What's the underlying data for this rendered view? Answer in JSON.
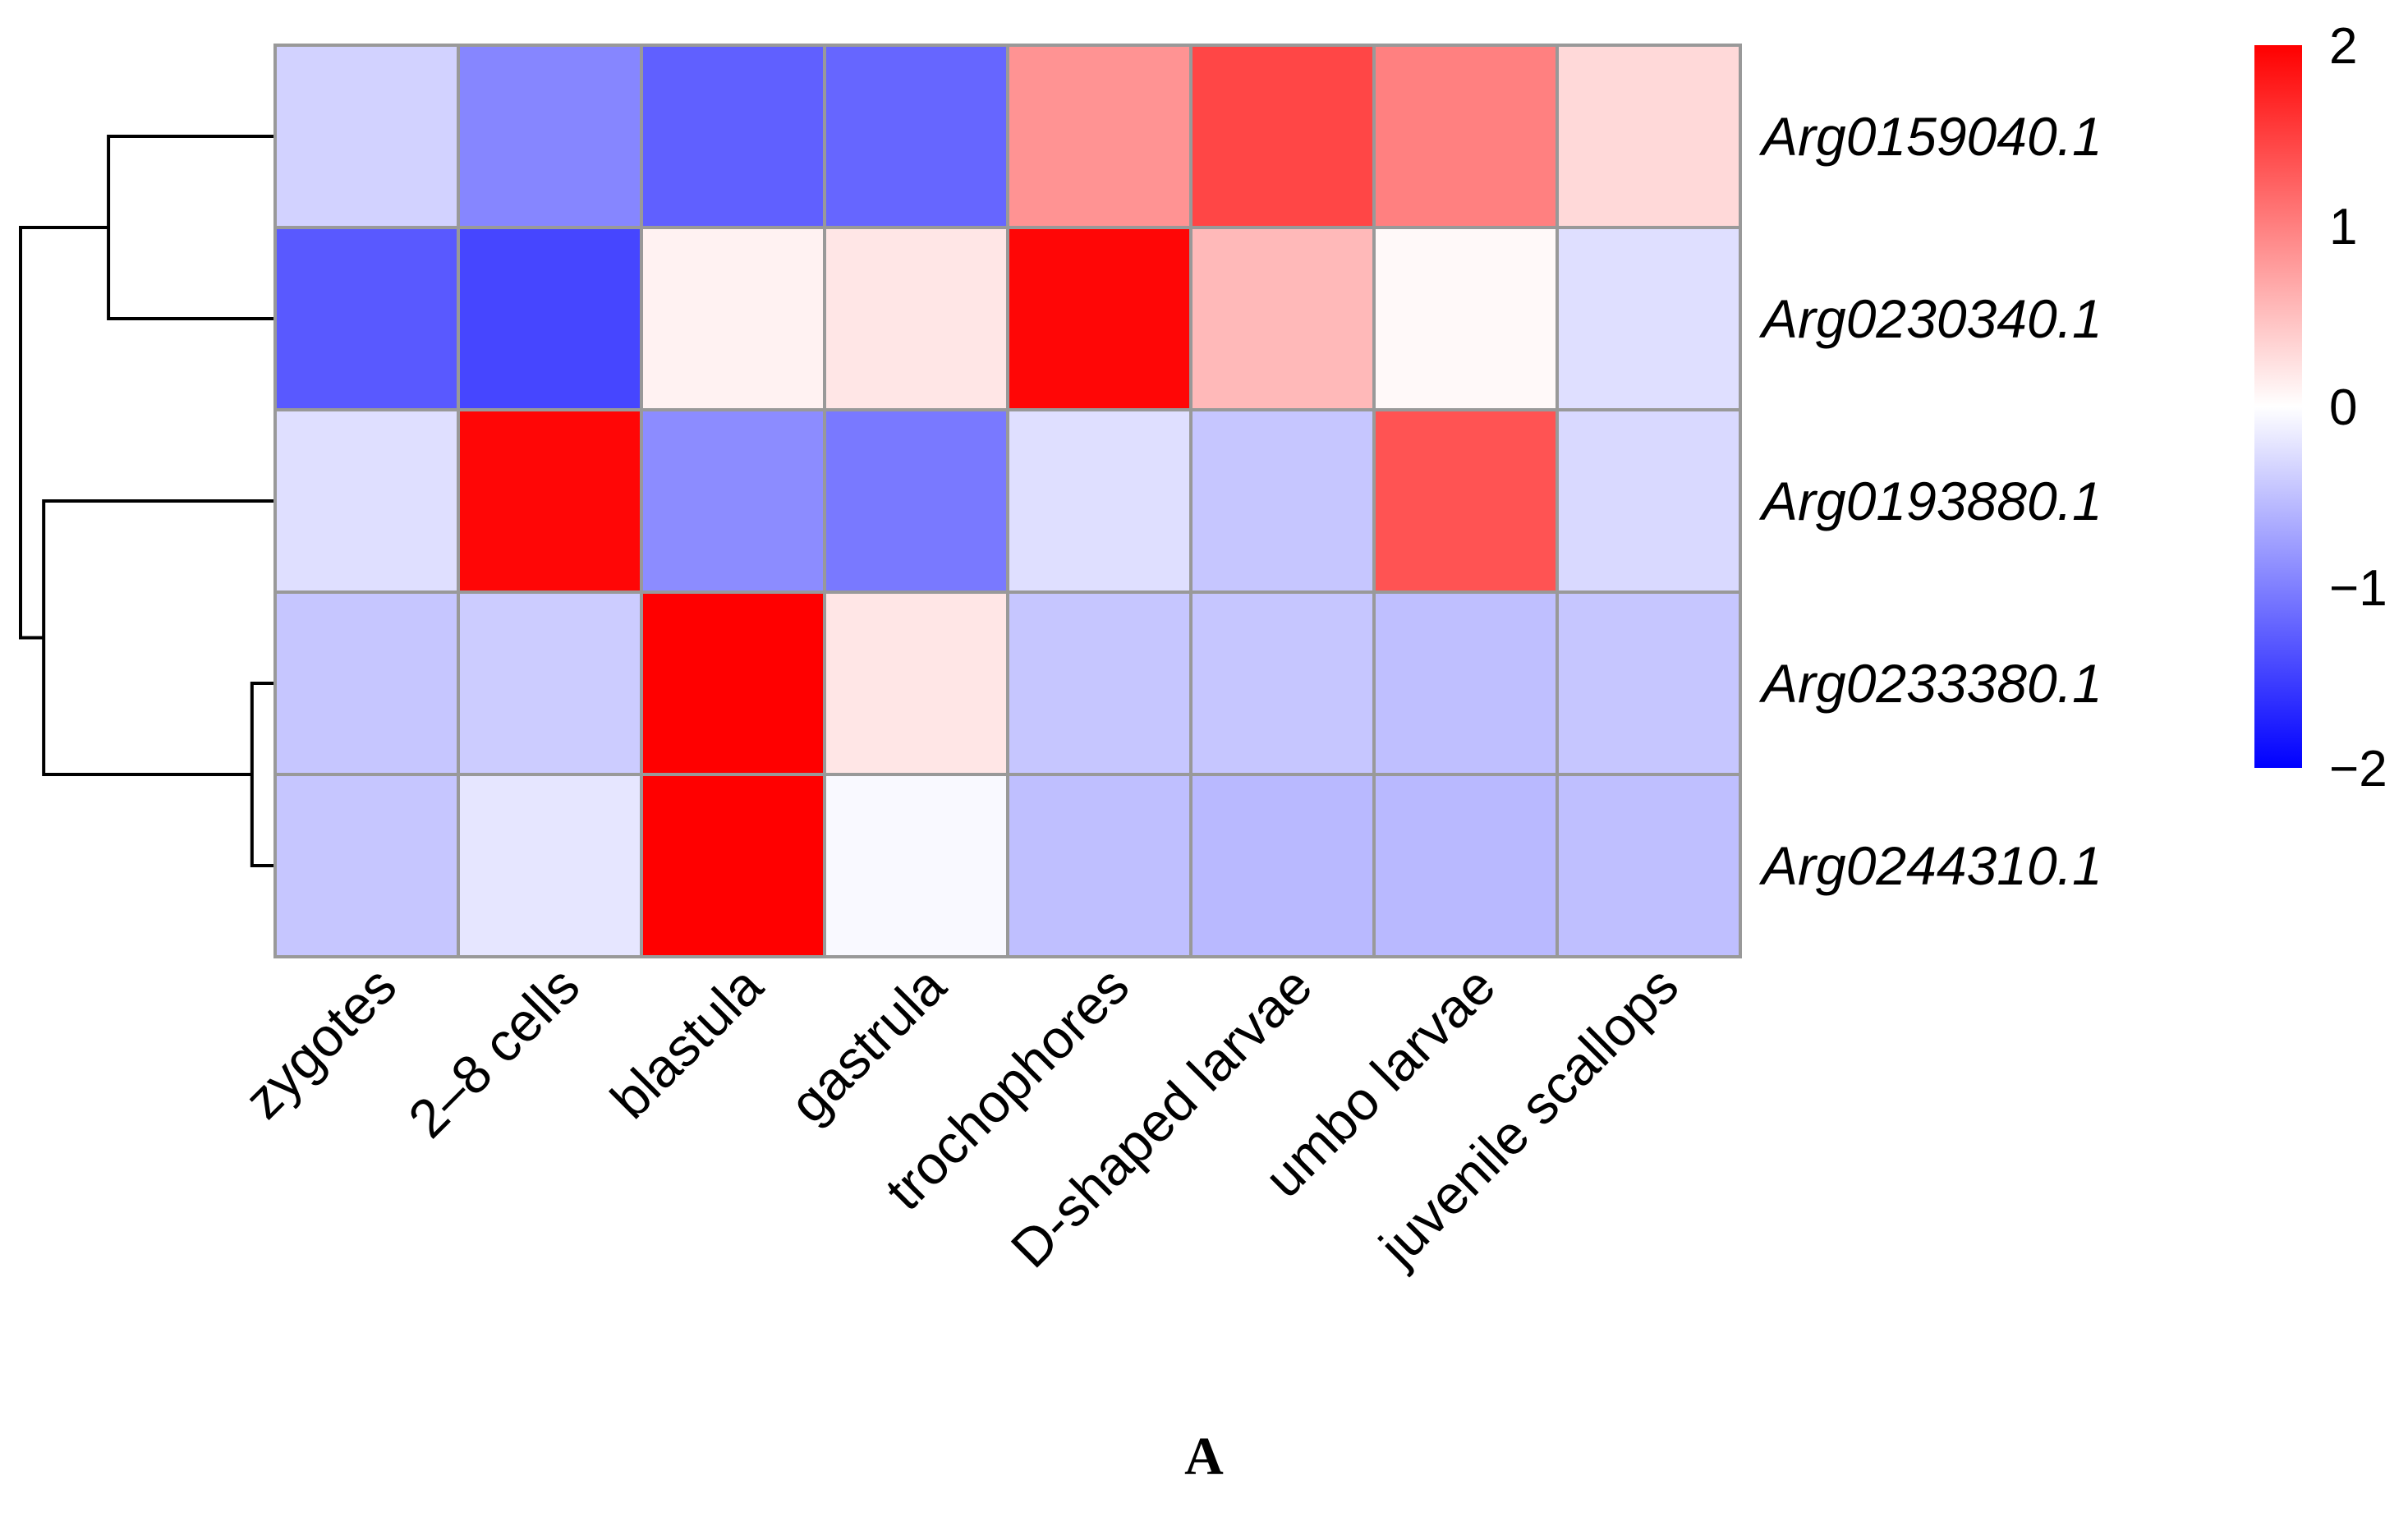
{
  "chart_data": {
    "type": "heatmap",
    "panel_label": "A",
    "columns": [
      "zygotes",
      "2–8 cells",
      "blastula",
      "gastrula",
      "trochophores",
      "D-shaped larvae",
      "umbo larvae",
      "juvenile scallops"
    ],
    "rows": [
      "Arg0159040.1",
      "Arg0230340.1",
      "Arg0193880.1",
      "Arg0233380.1",
      "Arg0244310.1"
    ],
    "values": [
      [
        -0.35,
        -0.95,
        -1.25,
        -1.2,
        0.85,
        1.45,
        1.0,
        0.3
      ],
      [
        -1.3,
        -1.45,
        0.1,
        0.2,
        1.95,
        0.55,
        0.05,
        -0.25
      ],
      [
        -0.25,
        1.95,
        -0.9,
        -1.05,
        -0.25,
        -0.45,
        1.35,
        -0.3
      ],
      [
        -0.45,
        -0.4,
        2.0,
        0.2,
        -0.45,
        -0.45,
        -0.5,
        -0.45
      ],
      [
        -0.45,
        -0.2,
        2.0,
        -0.05,
        -0.5,
        -0.55,
        -0.55,
        -0.5
      ]
    ],
    "color_scale": {
      "min": -2,
      "max": 2,
      "low_color": "#0000ff",
      "mid_color": "#ffffff",
      "high_color": "#ff0000"
    },
    "colorbar_ticks": [
      {
        "value": 2,
        "label": "2"
      },
      {
        "value": 1,
        "label": "1"
      },
      {
        "value": 0,
        "label": "0"
      },
      {
        "value": -1,
        "label": "−1"
      },
      {
        "value": -2,
        "label": "−2"
      }
    ],
    "row_dendrogram": {
      "merges": [
        {
          "left": "Arg0159040.1",
          "right": "Arg0230340.1",
          "height": 0.72
        },
        {
          "left": "Arg0233380.1",
          "right": "Arg0244310.1",
          "height": 0.1
        },
        {
          "left": "Arg0193880.1",
          "right": "Arg0233380.1 + Arg0244310.1",
          "height": 1.0
        },
        {
          "left": "Arg0159040.1 + Arg0230340.1",
          "right": "Arg0193880.1 + Arg0233380.1 + Arg0244310.1",
          "height": 1.1
        }
      ]
    },
    "grid_color": "#999999"
  }
}
